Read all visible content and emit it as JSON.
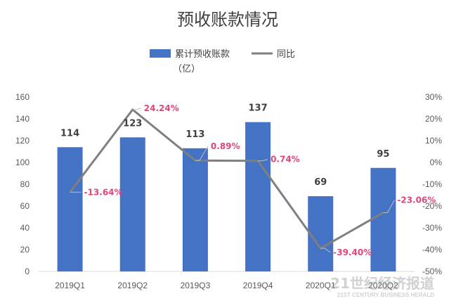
{
  "watermark": {
    "cn": "21世纪经济报道",
    "en": "21ST CENTURY BUSINESS HERALD"
  },
  "chart_data": {
    "type": "bar",
    "title": "预收账款情况",
    "categories": [
      "2019Q1",
      "2019Q2",
      "2019Q3",
      "2019Q4",
      "2020Q1",
      "2020Q2"
    ],
    "series": [
      {
        "name": "累计预收账款（亿）",
        "type": "bar",
        "axis": "left",
        "color": "#4472c4",
        "values": [
          114,
          123,
          113,
          137,
          69,
          95
        ],
        "labels": [
          "114",
          "123",
          "113",
          "137",
          "69",
          "95"
        ]
      },
      {
        "name": "同比",
        "type": "line",
        "axis": "right",
        "color": "#7f7f7f",
        "values": [
          -13.64,
          24.24,
          0.89,
          0.74,
          -39.4,
          -23.06
        ],
        "labels": [
          "-13.64%",
          "24.24%",
          "0.89%",
          "0.74%",
          "-39.40%",
          "-23.06%"
        ]
      }
    ],
    "y_left": {
      "min": 0,
      "max": 160,
      "step": 20,
      "ticks": [
        "0",
        "20",
        "40",
        "60",
        "80",
        "100",
        "120",
        "140",
        "160"
      ]
    },
    "y_right": {
      "min": -50,
      "max": 30,
      "step": 10,
      "ticks": [
        "-50%",
        "-40%",
        "-30%",
        "-20%",
        "-10%",
        "0%",
        "10%",
        "20%",
        "30%"
      ]
    },
    "legend": {
      "position": "top"
    },
    "grid": false
  }
}
